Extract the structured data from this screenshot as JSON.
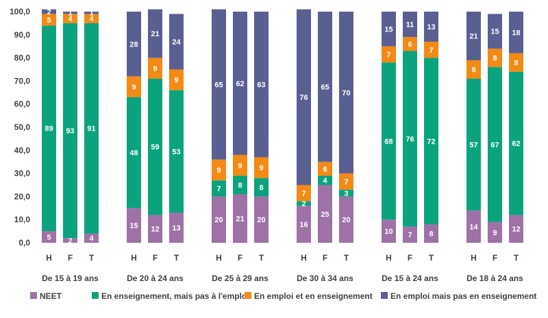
{
  "chart_data": {
    "type": "bar",
    "stacked": true,
    "ylim": [
      0,
      100
    ],
    "yticks": [
      "0,0",
      "10,0",
      "20,0",
      "30,0",
      "40,0",
      "50,0",
      "60,0",
      "70,0",
      "80,0",
      "90,0",
      "100,0"
    ],
    "grid": false,
    "legend_position": "bottom",
    "groups": [
      {
        "label": "De 15 à 19 ans",
        "categories": [
          "H",
          "F",
          "T"
        ]
      },
      {
        "label": "De 20 à 24 ans",
        "categories": [
          "H",
          "F",
          "T"
        ]
      },
      {
        "label": "De 25 à 29 ans",
        "categories": [
          "H",
          "F",
          "T"
        ]
      },
      {
        "label": "De 30 à 34 ans",
        "categories": [
          "H",
          "F",
          "T"
        ]
      },
      {
        "label": "De 15 à 24 ans",
        "categories": [
          "H",
          "F",
          "T"
        ]
      },
      {
        "label": "De 18 à 24 ans",
        "categories": [
          "H",
          "F",
          "T"
        ]
      }
    ],
    "series": [
      {
        "name": "NEET",
        "color": "#9E72A6",
        "values": [
          5,
          2,
          4,
          15,
          12,
          13,
          20,
          21,
          20,
          16,
          25,
          20,
          10,
          7,
          8,
          14,
          9,
          12
        ]
      },
      {
        "name": "En enseignement, mais pas à l'emploi",
        "color": "#0BA37E",
        "values": [
          89,
          93,
          91,
          48,
          59,
          53,
          7,
          8,
          8,
          2,
          4,
          3,
          68,
          76,
          72,
          57,
          67,
          62
        ]
      },
      {
        "name": "En emploi et en enseignement",
        "color": "#F28A15",
        "values": [
          5,
          4,
          4,
          9,
          9,
          9,
          9,
          9,
          9,
          7,
          6,
          7,
          7,
          6,
          7,
          8,
          8,
          8
        ]
      },
      {
        "name": "En emploi mais pas en enseignement",
        "color": "#5A5F92",
        "values": [
          2,
          1,
          1,
          28,
          21,
          24,
          65,
          62,
          63,
          76,
          65,
          70,
          15,
          11,
          13,
          21,
          15,
          18
        ]
      }
    ]
  }
}
